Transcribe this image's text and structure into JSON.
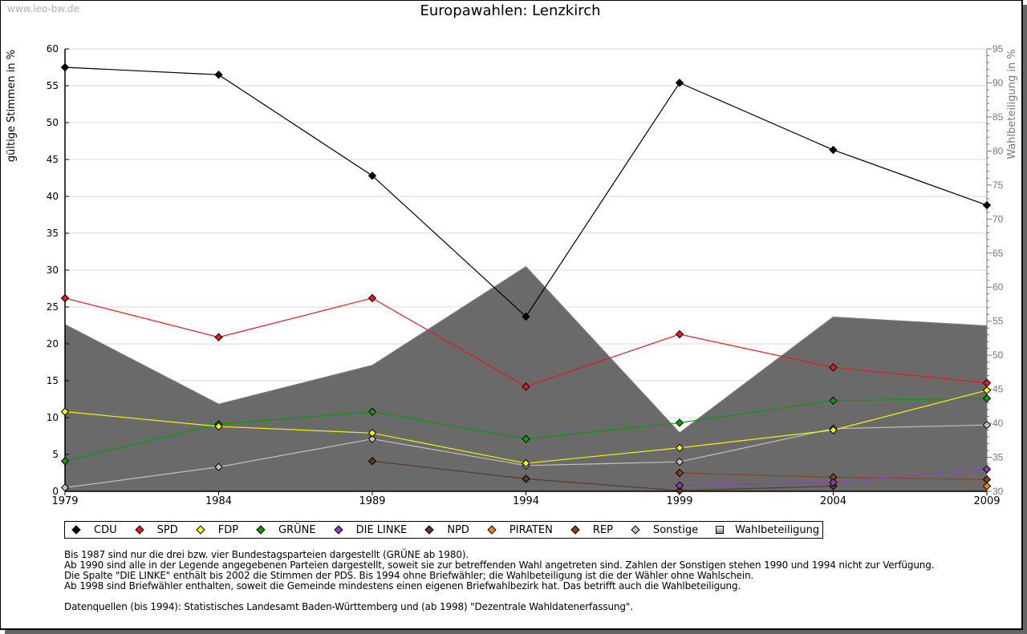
{
  "watermark": "www.leo-bw.de",
  "notes": [
    "Bis 1987 sind nur die drei bzw. vier Bundestagsparteien dargestellt (GRÜNE ab 1980).",
    "Ab 1990 sind alle in der Legende angegebenen Parteien dargestellt, soweit sie zur betreffenden Wahl angetreten sind. Zahlen der Sonstigen stehen 1990 und 1994 nicht zur Verfügung.",
    "Die Spalte \"DIE LINKE\" enthält bis 2002 die Stimmen der PDS. Bis 1994 ohne Briefwähler; die Wahlbeteiligung ist die der Wähler ohne Wahlschein.",
    "Ab 1998 sind Briefwähler enthalten, soweit die Gemeinde mindestens einen eigenen Briefwahlbezirk hat. Das betrifft auch die Wahlbeteiligung."
  ],
  "source": "Datenquellen (bis 1994): Statistisches Landesamt Baden-Württemberg und (ab 1998) \"Dezentrale Wahldatenerfassung\".",
  "chart_data": {
    "type": "line",
    "title": "Europawahlen: Lenzkirch",
    "xlabel": "",
    "ylabel": "gültige Stimmen in %",
    "y2label": "Wahlbeteiligung in %",
    "x": [
      "1979",
      "1984",
      "1989",
      "1994",
      "1999",
      "2004",
      "2009"
    ],
    "ylim": [
      0,
      60
    ],
    "y2lim": [
      30,
      95
    ],
    "yticks": [
      0,
      5,
      10,
      15,
      20,
      25,
      30,
      35,
      40,
      45,
      50,
      55,
      60
    ],
    "y2ticks": [
      30,
      35,
      40,
      45,
      50,
      55,
      60,
      65,
      70,
      75,
      80,
      85,
      90,
      95
    ],
    "grid": true,
    "legend_position": "bottom",
    "series": [
      {
        "name": "CDU",
        "color": "#000000",
        "axis": "left",
        "values": [
          57.5,
          56.5,
          42.8,
          23.7,
          55.4,
          46.3,
          38.8
        ]
      },
      {
        "name": "SPD",
        "color": "#e41a1c",
        "axis": "left",
        "values": [
          26.2,
          20.9,
          26.2,
          14.2,
          21.3,
          16.8,
          14.7
        ]
      },
      {
        "name": "FDP",
        "color": "#f5f500",
        "axis": "left",
        "values": [
          10.8,
          8.8,
          7.9,
          3.8,
          5.9,
          8.3,
          13.7
        ]
      },
      {
        "name": "GRÜNE",
        "color": "#00a000",
        "axis": "left",
        "values": [
          4.1,
          9.1,
          10.8,
          7.1,
          9.3,
          12.3,
          12.6
        ]
      },
      {
        "name": "DIE LINKE",
        "color": "#8e3cc8",
        "axis": "left",
        "values": [
          null,
          null,
          null,
          null,
          0.8,
          1.2,
          3.0
        ]
      },
      {
        "name": "NPD",
        "color": "#5a3a28",
        "axis": "left",
        "values": [
          null,
          null,
          4.1,
          1.7,
          0.1,
          0.7,
          null
        ]
      },
      {
        "name": "PIRATEN",
        "color": "#ff8000",
        "axis": "left",
        "values": [
          null,
          null,
          null,
          null,
          null,
          null,
          0.7
        ]
      },
      {
        "name": "REP",
        "color": "#8b4513",
        "axis": "left",
        "values": [
          null,
          null,
          null,
          null,
          2.5,
          1.9,
          1.6
        ]
      },
      {
        "name": "Sonstige",
        "color": "#c0c0c0",
        "axis": "left",
        "values": [
          0.5,
          3.3,
          7.1,
          3.5,
          4.0,
          8.5,
          9.0
        ]
      },
      {
        "name": "Wahlbeteiligung",
        "color": "#888888",
        "axis": "right",
        "type": "area",
        "values": [
          54.5,
          42.8,
          48.5,
          63.0,
          38.6,
          55.6,
          54.3
        ]
      }
    ]
  }
}
